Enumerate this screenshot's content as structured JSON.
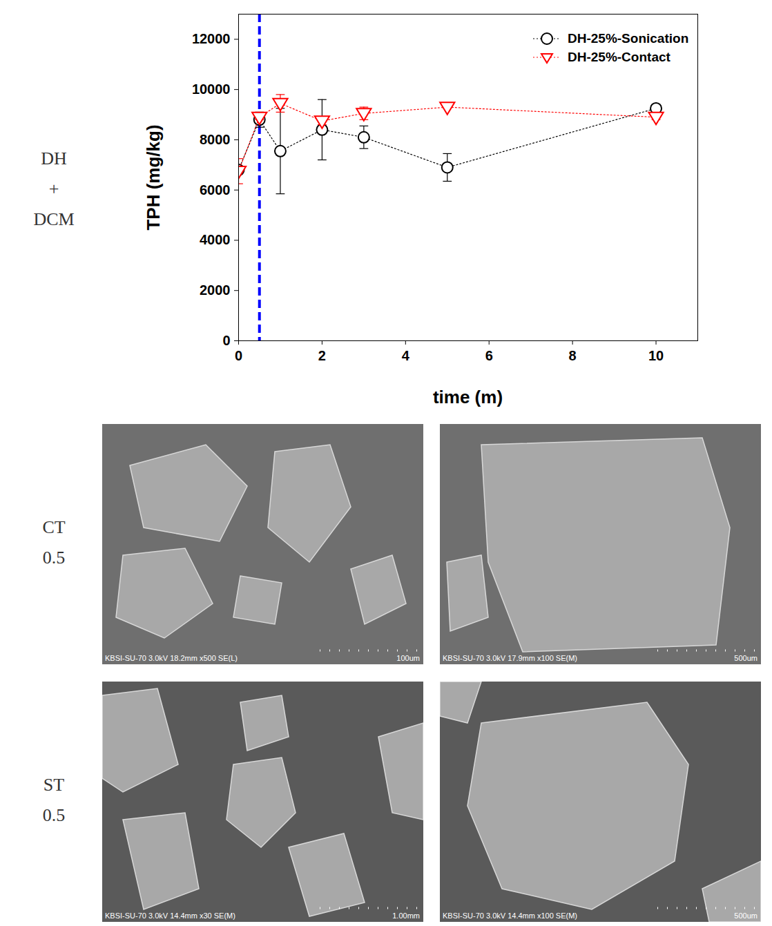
{
  "chart_data": {
    "type": "line",
    "xlabel": "time (m)",
    "ylabel": "TPH (mg/kg)",
    "xlim": [
      0,
      11
    ],
    "xticks": [
      0,
      2,
      4,
      6,
      8,
      10
    ],
    "ylim": [
      0,
      13000
    ],
    "yticks": [
      0,
      2000,
      4000,
      6000,
      8000,
      10000,
      12000
    ],
    "legend": "top-right",
    "reference_lines": [
      {
        "x": 0.5,
        "color": "#0000ff",
        "line_style": "dashed"
      }
    ],
    "series": [
      {
        "name": "DH-25%-Sonication",
        "color": "#000000",
        "marker": "circle",
        "line_style": "dotted",
        "x": [
          0,
          0.5,
          1,
          2,
          3,
          5,
          10
        ],
        "values": [
          6800,
          8800,
          7550,
          8400,
          8100,
          6900,
          9250
        ],
        "error": [
          100,
          300,
          1700,
          1200,
          450,
          550,
          100
        ]
      },
      {
        "name": "DH-25%-Contact",
        "color": "#ff0000",
        "marker": "triangle-down",
        "line_style": "dotted",
        "x": [
          0,
          0.5,
          1,
          2,
          3,
          5,
          10
        ],
        "values": [
          6750,
          8900,
          9450,
          8750,
          9050,
          9300,
          8900
        ],
        "error": [
          500,
          100,
          350,
          150,
          250,
          0,
          100
        ]
      }
    ]
  },
  "rows": [
    {
      "label": [
        "DH",
        "+",
        "DCM"
      ]
    },
    {
      "label": [
        "CT",
        "0.5"
      ],
      "images": [
        {
          "caption": "KBSI-SU-70 3.0kV 18.2mm x500 SE(L)",
          "scale": "100um"
        },
        {
          "caption": "KBSI-SU-70 3.0kV 17.9mm x100 SE(M)",
          "scale": "500um"
        }
      ]
    },
    {
      "label": [
        "ST",
        "0.5"
      ],
      "images": [
        {
          "caption": "KBSI-SU-70 3.0kV 14.4mm x30 SE(M)",
          "scale": "1.00mm"
        },
        {
          "caption": "KBSI-SU-70 3.0kV 14.4mm x100 SE(M)",
          "scale": "500um"
        }
      ]
    }
  ]
}
